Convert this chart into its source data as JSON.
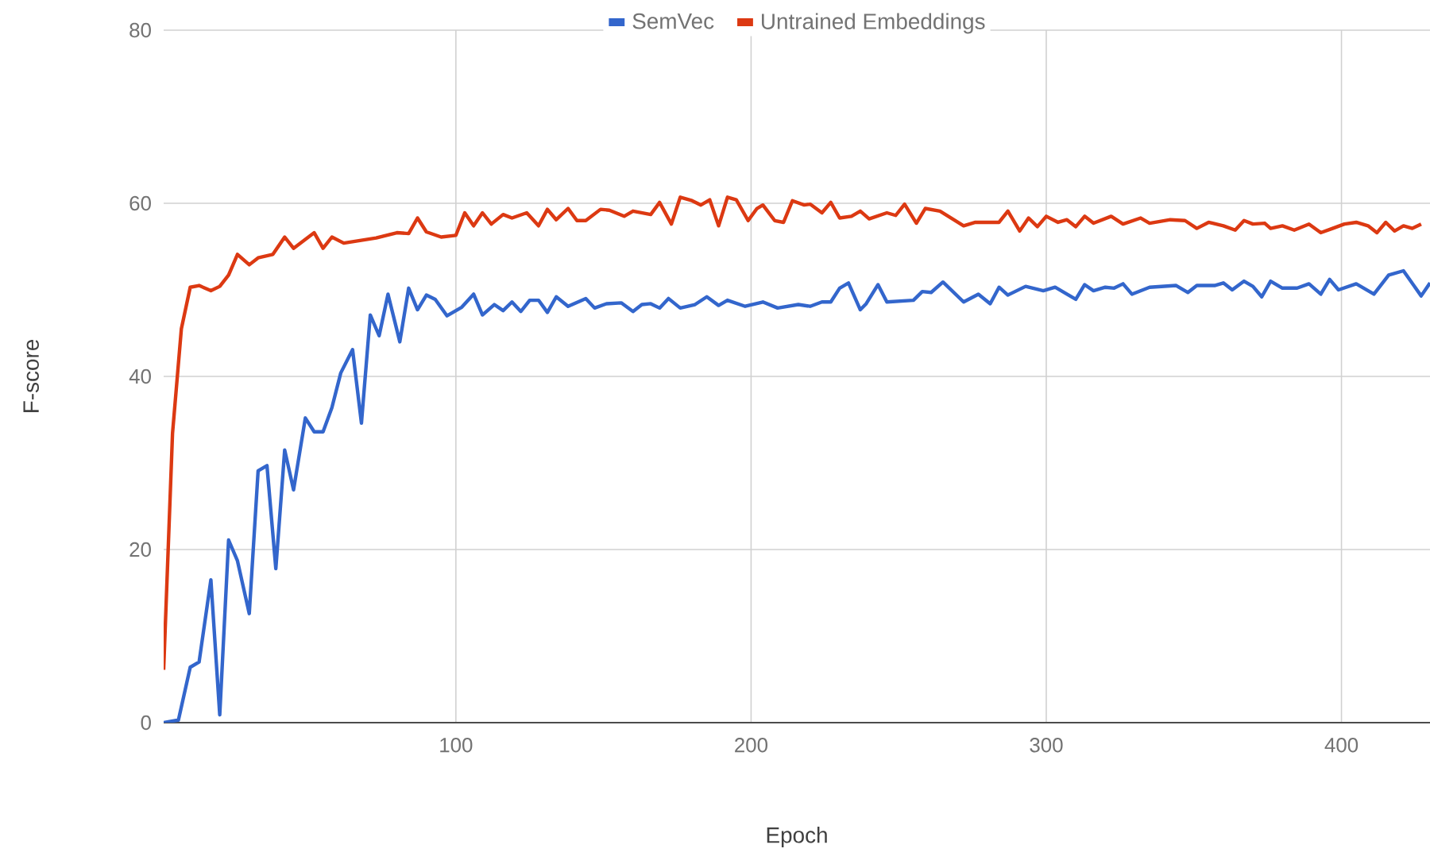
{
  "chart_data": {
    "type": "line",
    "xlabel": "Epoch",
    "ylabel": "F-score",
    "xlim": [
      1,
      430
    ],
    "ylim": [
      0,
      80
    ],
    "xticks": [
      100,
      200,
      300,
      400
    ],
    "yticks": [
      0,
      20,
      40,
      60,
      80
    ],
    "grid": true,
    "legend": "top",
    "line_style": "solid",
    "marker": "none",
    "series": [
      {
        "name": "SemVec",
        "color": "#3366cc",
        "x": [
          1,
          6,
          10,
          13,
          17,
          20,
          23,
          26,
          30,
          33,
          36,
          39,
          42,
          45,
          49,
          52,
          55,
          58,
          61,
          65,
          68,
          71,
          74,
          77,
          81,
          84,
          87,
          90,
          93,
          97,
          102,
          106,
          109,
          113,
          116,
          119,
          122,
          125,
          128,
          131,
          134,
          138,
          144,
          147,
          151,
          156,
          160,
          163,
          166,
          169,
          172,
          176,
          181,
          185,
          189,
          192,
          198,
          204,
          209,
          216,
          220,
          224,
          227,
          230,
          233,
          237,
          239,
          243,
          246,
          255,
          258,
          261,
          265,
          272,
          277,
          281,
          284,
          287,
          293,
          299,
          303,
          307,
          310,
          313,
          316,
          320,
          323,
          326,
          329,
          335,
          344,
          348,
          351,
          357,
          360,
          363,
          367,
          370,
          373,
          376,
          380,
          385,
          389,
          393,
          396,
          399,
          405,
          411,
          416,
          421,
          427,
          430
        ],
        "values": [
          0,
          0.3,
          6.4,
          7,
          16.5,
          0.9,
          21.1,
          18.7,
          12.6,
          29.1,
          29.7,
          17.8,
          31.5,
          26.9,
          35.2,
          33.6,
          33.6,
          36.4,
          40.4,
          43.1,
          34.6,
          47.1,
          44.7,
          49.5,
          44,
          50.2,
          47.7,
          49.4,
          48.9,
          47,
          48,
          49.5,
          47.1,
          48.3,
          47.6,
          48.6,
          47.5,
          48.8,
          48.8,
          47.4,
          49.2,
          48.1,
          49,
          47.9,
          48.4,
          48.5,
          47.5,
          48.3,
          48.4,
          47.9,
          49,
          47.9,
          48.3,
          49.2,
          48.2,
          48.8,
          48.1,
          48.6,
          47.9,
          48.3,
          48.1,
          48.6,
          48.6,
          50.2,
          50.8,
          47.7,
          48.4,
          50.6,
          48.6,
          48.8,
          49.8,
          49.7,
          50.9,
          48.6,
          49.5,
          48.4,
          50.3,
          49.4,
          50.4,
          49.9,
          50.3,
          49.5,
          48.9,
          50.6,
          49.9,
          50.3,
          50.2,
          50.7,
          49.5,
          50.3,
          50.5,
          49.7,
          50.5,
          50.5,
          50.8,
          50,
          51,
          50.4,
          49.2,
          51,
          50.2,
          50.2,
          50.7,
          49.5,
          51.2,
          50,
          50.7,
          49.5,
          51.7,
          52.2,
          49.3,
          50.8
        ]
      },
      {
        "name": "Untrained Embeddings",
        "color": "#dc3912",
        "x": [
          1,
          4,
          7,
          10,
          13,
          17,
          20,
          23,
          26,
          30,
          33,
          38,
          42,
          45,
          52,
          55,
          58,
          62,
          73,
          80,
          84,
          87,
          90,
          95,
          100,
          103,
          106,
          109,
          112,
          116,
          119,
          124,
          128,
          131,
          134,
          138,
          141,
          144,
          149,
          152,
          157,
          160,
          166,
          169,
          173,
          176,
          180,
          183,
          186,
          189,
          192,
          195,
          199,
          202,
          204,
          208,
          211,
          214,
          218,
          220,
          224,
          227,
          230,
          234,
          237,
          240,
          246,
          249,
          252,
          256,
          259,
          264,
          272,
          276,
          284,
          287,
          291,
          294,
          297,
          300,
          304,
          307,
          310,
          313,
          316,
          322,
          326,
          332,
          335,
          342,
          347,
          351,
          355,
          360,
          364,
          367,
          370,
          374,
          376,
          380,
          384,
          389,
          393,
          397,
          401,
          405,
          409,
          412,
          415,
          418,
          421,
          424,
          427
        ],
        "values": [
          6.1,
          33.4,
          45.5,
          50.3,
          50.5,
          49.9,
          50.4,
          51.7,
          54.1,
          52.9,
          53.7,
          54.1,
          56.1,
          54.8,
          56.6,
          54.8,
          56.1,
          55.4,
          56,
          56.6,
          56.5,
          58.3,
          56.7,
          56.1,
          56.3,
          58.9,
          57.4,
          58.9,
          57.6,
          58.7,
          58.3,
          58.9,
          57.4,
          59.3,
          58.1,
          59.4,
          58,
          58,
          59.3,
          59.2,
          58.5,
          59.1,
          58.7,
          60.1,
          57.6,
          60.7,
          60.3,
          59.8,
          60.4,
          57.4,
          60.7,
          60.4,
          58,
          59.4,
          59.8,
          58,
          57.8,
          60.3,
          59.8,
          59.9,
          58.9,
          60.1,
          58.3,
          58.5,
          59.1,
          58.2,
          58.9,
          58.6,
          59.9,
          57.7,
          59.4,
          59.1,
          57.4,
          57.8,
          57.8,
          59.1,
          56.8,
          58.3,
          57.3,
          58.5,
          57.8,
          58.1,
          57.3,
          58.5,
          57.7,
          58.5,
          57.6,
          58.3,
          57.7,
          58.1,
          58,
          57.1,
          57.8,
          57.4,
          56.9,
          58,
          57.6,
          57.7,
          57.1,
          57.4,
          56.9,
          57.6,
          56.6,
          57.1,
          57.6,
          57.8,
          57.4,
          56.6,
          57.8,
          56.8,
          57.4,
          57.1,
          57.6
        ]
      }
    ]
  }
}
